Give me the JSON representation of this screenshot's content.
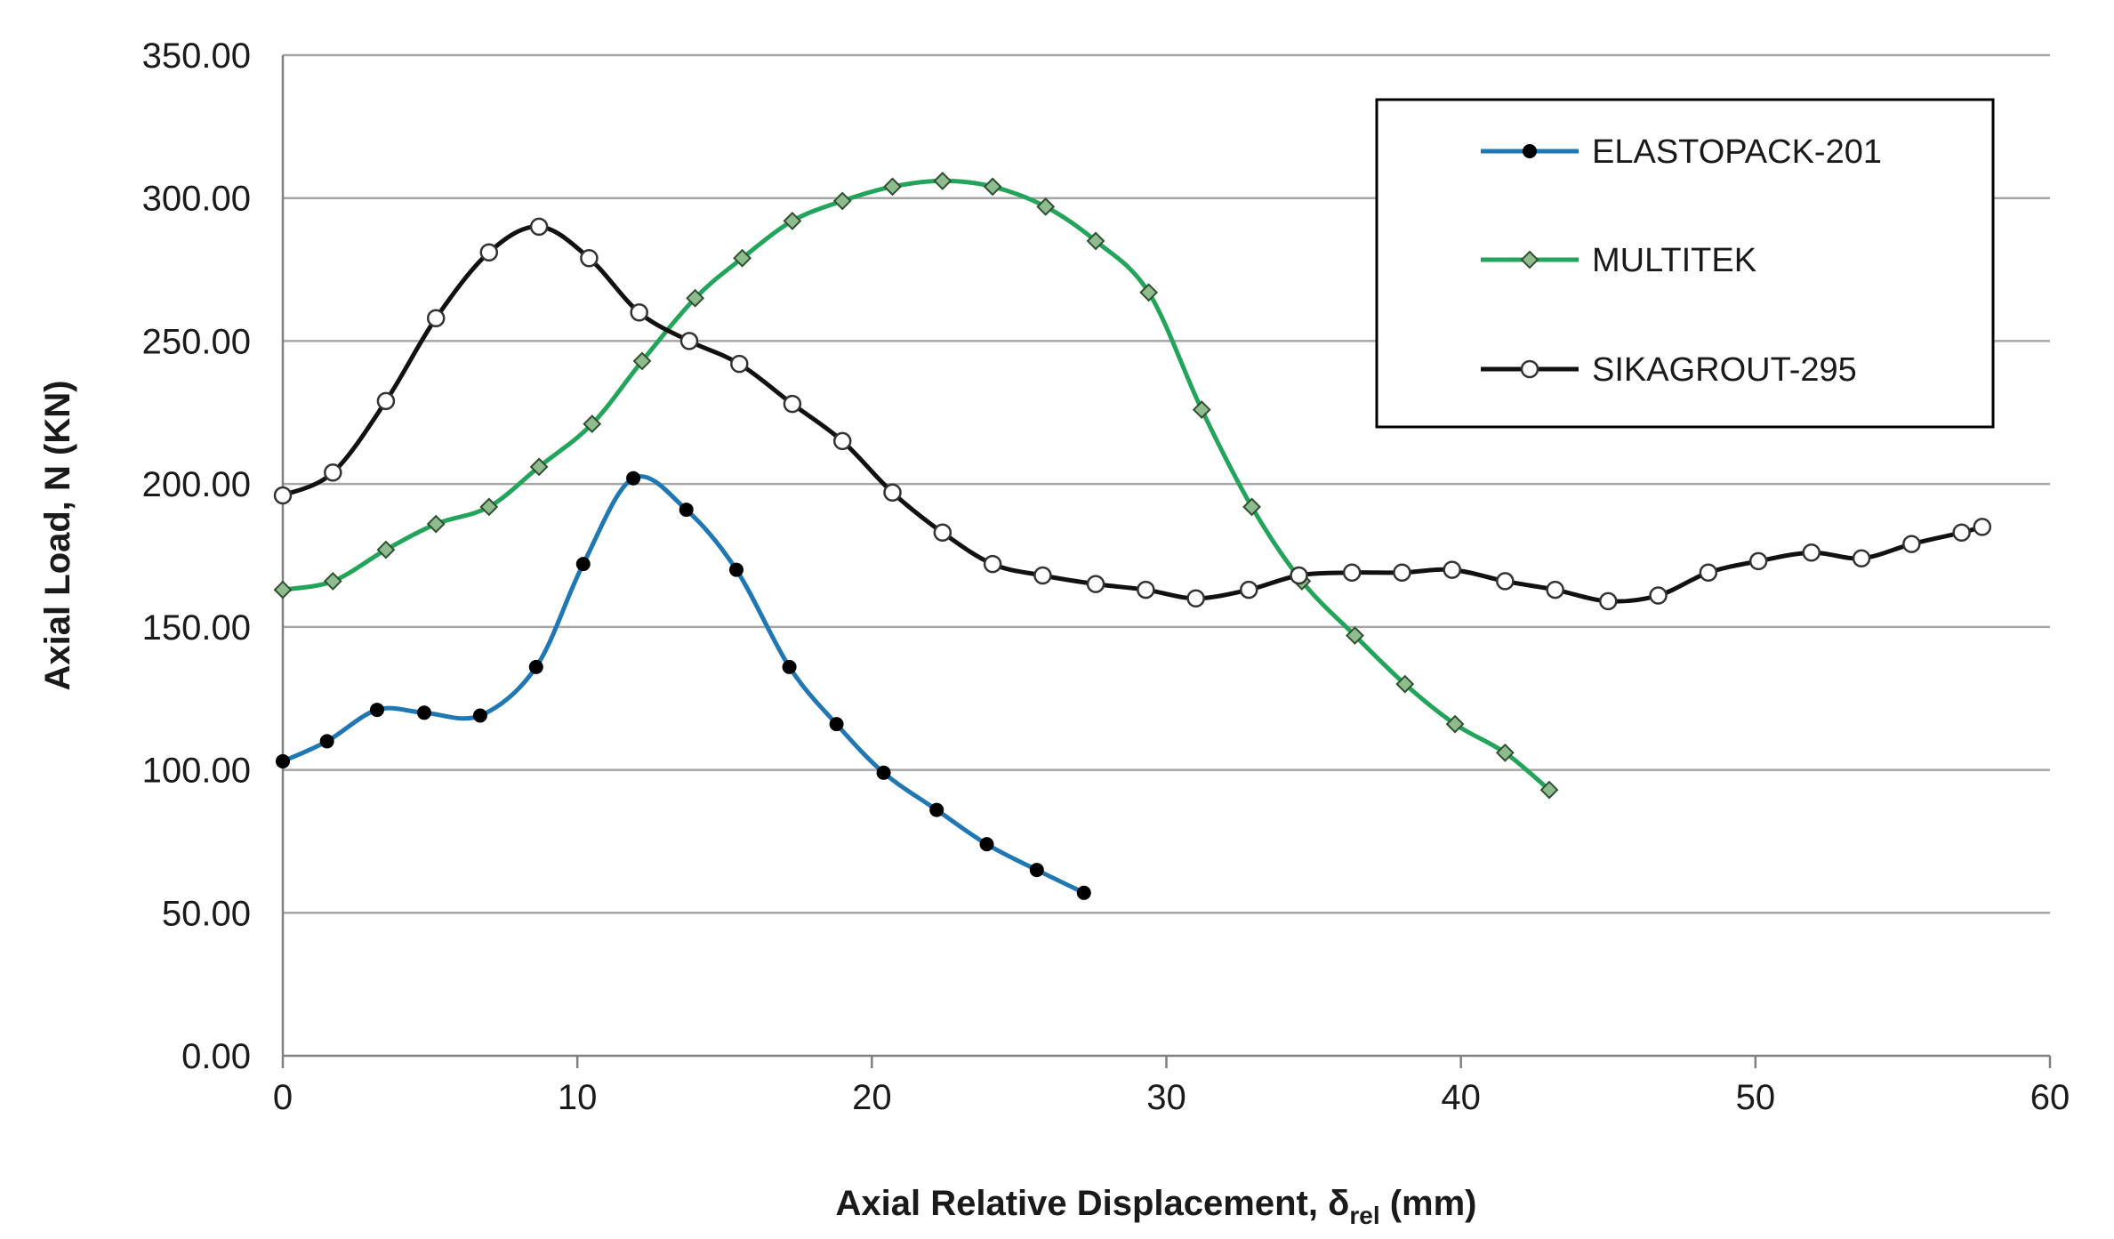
{
  "chart_data": {
    "type": "line",
    "title": "",
    "xlabel": "Axial Relative Displacement, δrel (mm)",
    "xlabel_main": "Axial Relative Displacement, δ",
    "xlabel_sub": "rel",
    "xlabel_tail": " (mm)",
    "ylabel": "Axial Load, N (KN)",
    "xlim": [
      0,
      60
    ],
    "ylim": [
      0,
      350
    ],
    "x_ticks": [
      0,
      10,
      20,
      30,
      40,
      50,
      60
    ],
    "x_tick_labels": [
      "0",
      "10",
      "20",
      "30",
      "40",
      "50",
      "60"
    ],
    "y_ticks": [
      0,
      50,
      100,
      150,
      200,
      250,
      300,
      350
    ],
    "y_tick_labels": [
      "0.00",
      "50.00",
      "100.00",
      "150.00",
      "200.00",
      "250.00",
      "300.00",
      "350.00"
    ],
    "grid": "horizontal",
    "legend_position": "top-right",
    "series": [
      {
        "name": "ELASTOPACK-201",
        "color": "#1f77b4",
        "marker": "filled-circle",
        "marker_color": "#000000",
        "x": [
          0,
          1.5,
          3.2,
          4.8,
          6.7,
          8.6,
          10.2,
          11.9,
          13.7,
          15.4,
          17.2,
          18.8,
          20.4,
          22.2,
          23.9,
          25.6,
          27.2
        ],
        "y": [
          103,
          110,
          121,
          120,
          119,
          136,
          172,
          202,
          191,
          170,
          136,
          116,
          99,
          86,
          74,
          65,
          57
        ]
      },
      {
        "name": "MULTITEK",
        "color": "#22a55b",
        "marker": "diamond",
        "marker_color": "#8fbc8f",
        "x": [
          0,
          1.7,
          3.5,
          5.2,
          7.0,
          8.7,
          10.5,
          12.2,
          14.0,
          15.6,
          17.3,
          19.0,
          20.7,
          22.4,
          24.1,
          25.9,
          27.6,
          29.4,
          31.2,
          32.9,
          34.6,
          36.4,
          38.1,
          39.8,
          41.5,
          43.0
        ],
        "y": [
          163,
          166,
          177,
          186,
          192,
          206,
          221,
          243,
          265,
          279,
          292,
          299,
          304,
          306,
          304,
          297,
          285,
          267,
          226,
          192,
          166,
          147,
          130,
          116,
          106,
          93
        ]
      },
      {
        "name": "SIKAGROUT-295",
        "color": "#111111",
        "marker": "open-circle",
        "marker_color": "#ffffff",
        "x": [
          0,
          1.7,
          3.5,
          5.2,
          7.0,
          8.7,
          10.4,
          12.1,
          13.8,
          15.5,
          17.3,
          19.0,
          20.7,
          22.4,
          24.1,
          25.8,
          27.6,
          29.3,
          31.0,
          32.8,
          34.5,
          36.3,
          38.0,
          39.7,
          41.5,
          43.2,
          45.0,
          46.7,
          48.4,
          50.1,
          51.9,
          53.6,
          55.3,
          57.0,
          57.7
        ],
        "y": [
          196,
          204,
          229,
          258,
          281,
          290,
          279,
          260,
          250,
          242,
          228,
          215,
          197,
          183,
          172,
          168,
          165,
          163,
          160,
          163,
          168,
          169,
          169,
          170,
          166,
          163,
          159,
          161,
          169,
          173,
          176,
          174,
          179,
          183,
          185
        ]
      }
    ]
  }
}
